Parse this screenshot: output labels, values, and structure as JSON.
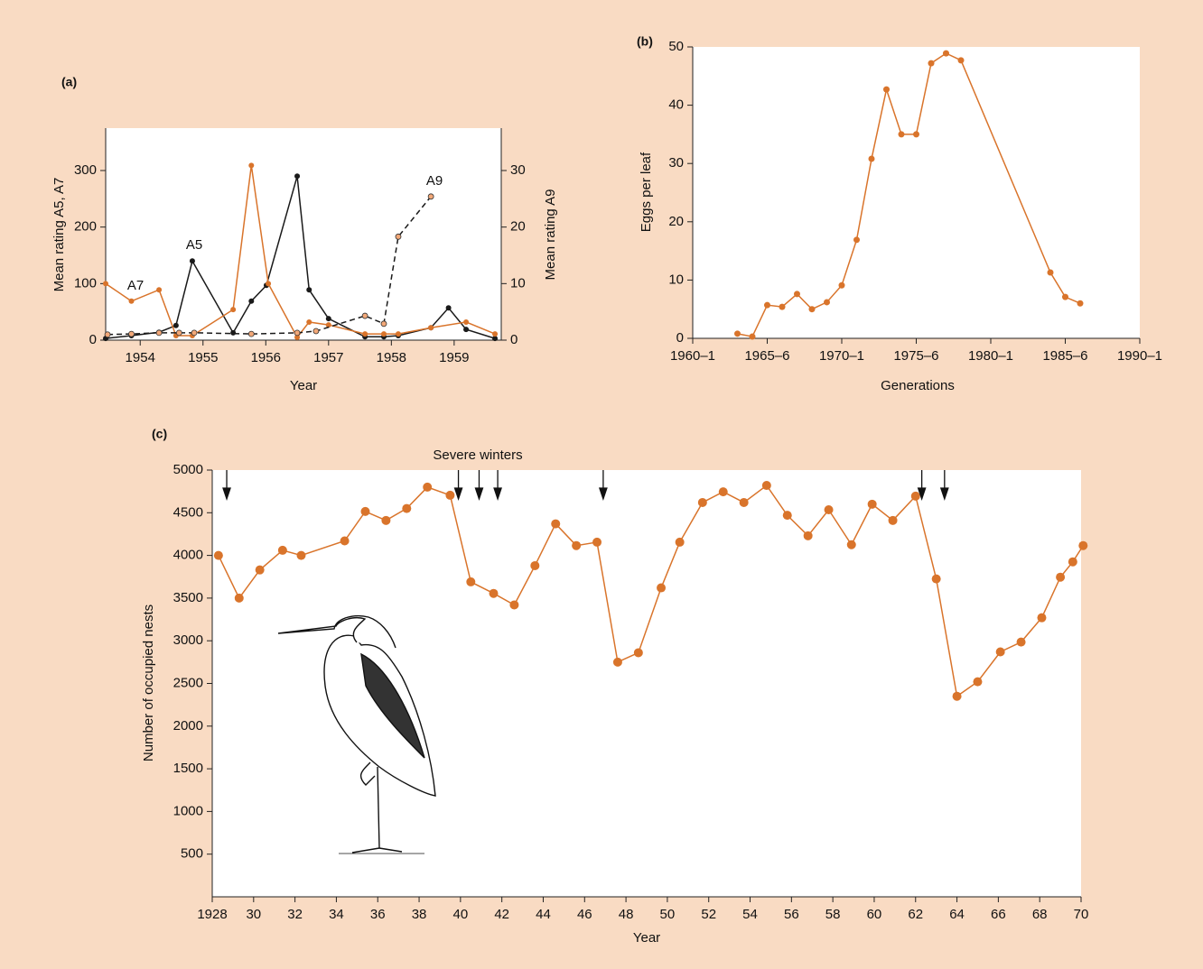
{
  "chart_data": [
    {
      "type": "line",
      "panel_label": "(a)",
      "xlabel": "Year",
      "ylabel": "Mean rating A5, A7",
      "y2label": "Mean rating A9",
      "xlim": [
        1953.45,
        1959.75
      ],
      "xticks": [
        1954,
        1955,
        1956,
        1957,
        1958,
        1959
      ],
      "ylim": [
        0,
        375
      ],
      "yticks": [
        0,
        100,
        200,
        300
      ],
      "y2lim": [
        0,
        37.5
      ],
      "y2ticks": [
        0,
        10,
        20,
        30
      ],
      "series": [
        {
          "name": "A5",
          "color": "#1a1a1a",
          "style": "solid",
          "x": [
            1953.45,
            1953.86,
            1954.3,
            1954.57,
            1954.83,
            1955.48,
            1955.77,
            1956.01,
            1956.5,
            1956.69,
            1957.0,
            1957.58,
            1957.88,
            1958.11,
            1958.63,
            1958.91,
            1959.19,
            1959.65
          ],
          "values": [
            3,
            8,
            14,
            26,
            140,
            13,
            69,
            97,
            290,
            89,
            38,
            6,
            6,
            8,
            22,
            57,
            19,
            3
          ]
        },
        {
          "name": "A7",
          "color": "#d9742b",
          "style": "solid",
          "x": [
            1953.45,
            1953.86,
            1954.3,
            1954.57,
            1954.83,
            1955.48,
            1955.77,
            1956.04,
            1956.5,
            1956.69,
            1957.0,
            1957.58,
            1957.88,
            1958.11,
            1958.63,
            1959.19,
            1959.65
          ],
          "values": [
            100,
            69,
            89,
            8,
            8,
            54,
            309,
            100,
            5,
            32,
            27,
            11,
            11,
            11,
            22,
            32,
            11
          ]
        },
        {
          "name": "A9",
          "color": "#1a1a1a",
          "marker_color": "#f2a878",
          "style": "dashed",
          "axis": "y2",
          "x": [
            1953.48,
            1953.86,
            1954.3,
            1954.62,
            1954.86,
            1955.77,
            1956.5,
            1956.8,
            1957.58,
            1957.88,
            1958.11,
            1958.63
          ],
          "values": [
            1.0,
            1.1,
            1.3,
            1.3,
            1.3,
            1.1,
            1.3,
            1.6,
            4.3,
            2.9,
            18.3,
            25.4
          ]
        }
      ]
    },
    {
      "type": "line",
      "panel_label": "(b)",
      "xlabel": "Generations",
      "ylabel": "Eggs per leaf",
      "xlim": [
        1960,
        1990
      ],
      "xticks": [
        {
          "value": 1960,
          "label": "1960–1"
        },
        {
          "value": 1965,
          "label": "1965–6"
        },
        {
          "value": 1970,
          "label": "1970–1"
        },
        {
          "value": 1975,
          "label": "1975–6"
        },
        {
          "value": 1980,
          "label": "1980–1"
        },
        {
          "value": 1985,
          "label": "1985–6"
        },
        {
          "value": 1990,
          "label": "1990–1"
        }
      ],
      "ylim": [
        0,
        50
      ],
      "yticks": [
        0,
        10,
        20,
        30,
        40,
        50
      ],
      "series": [
        {
          "color": "#d9742b",
          "style": "solid",
          "x": [
            1963,
            1964,
            1965,
            1966,
            1967,
            1968,
            1969,
            1970,
            1971,
            1972,
            1973,
            1974,
            1975,
            1976,
            1977,
            1978,
            1984,
            1985,
            1986
          ],
          "values": [
            0.8,
            0.3,
            5.7,
            5.4,
            7.6,
            5.0,
            6.2,
            9.1,
            16.9,
            30.8,
            42.7,
            35,
            35,
            47.2,
            48.9,
            47.7,
            11.3,
            7.1,
            6.0
          ]
        }
      ]
    },
    {
      "type": "line",
      "panel_label": "(c)",
      "xlabel": "Year",
      "ylabel": "Number of occupied nests",
      "annotation": "Severe winters",
      "arrows_x": [
        1928.7,
        1939.9,
        1940.9,
        1941.8,
        1946.9,
        1962.3,
        1963.4
      ],
      "xlim": [
        1928,
        1970
      ],
      "xticks": [
        1928,
        {
          "value": 1930,
          "label": "30"
        },
        {
          "value": 1932,
          "label": "32"
        },
        {
          "value": 1934,
          "label": "34"
        },
        {
          "value": 1936,
          "label": "36"
        },
        {
          "value": 1938,
          "label": "38"
        },
        {
          "value": 1940,
          "label": "40"
        },
        {
          "value": 1942,
          "label": "42"
        },
        {
          "value": 1944,
          "label": "44"
        },
        {
          "value": 1946,
          "label": "46"
        },
        {
          "value": 1948,
          "label": "48"
        },
        {
          "value": 1950,
          "label": "50"
        },
        {
          "value": 1952,
          "label": "52"
        },
        {
          "value": 1954,
          "label": "54"
        },
        {
          "value": 1956,
          "label": "56"
        },
        {
          "value": 1958,
          "label": "58"
        },
        {
          "value": 1960,
          "label": "60"
        },
        {
          "value": 1962,
          "label": "62"
        },
        {
          "value": 1964,
          "label": "64"
        },
        {
          "value": 1966,
          "label": "66"
        },
        {
          "value": 1968,
          "label": "68"
        },
        {
          "value": 1970,
          "label": "70"
        }
      ],
      "ylim": [
        0,
        5000
      ],
      "yticks": [
        500,
        1000,
        1500,
        2000,
        2500,
        3000,
        3500,
        4000,
        4500,
        5000
      ],
      "series": [
        {
          "color": "#d9742b",
          "style": "solid",
          "x": [
            1928.3,
            1929.3,
            1930.3,
            1931.4,
            1932.3,
            1934.4,
            1935.4,
            1936.4,
            1937.4,
            1938.4,
            1939.5,
            1940.5,
            1941.6,
            1942.6,
            1943.6,
            1944.6,
            1945.6,
            1946.6,
            1947.6,
            1948.6,
            1949.7,
            1950.6,
            1951.7,
            1952.7,
            1953.7,
            1954.8,
            1955.8,
            1956.8,
            1957.8,
            1958.9,
            1959.9,
            1960.9,
            1962.0,
            1963.0,
            1964.0,
            1965.0,
            1966.1,
            1967.1,
            1968.1,
            1969.0,
            1969.6,
            1970.1
          ],
          "values": [
            4000,
            3500,
            3830,
            4060,
            4000,
            4170,
            4515,
            4410,
            4550,
            4800,
            4705,
            3690,
            3555,
            3420,
            3880,
            4370,
            4115,
            4155,
            2750,
            2860,
            3620,
            4155,
            4620,
            4745,
            4620,
            4820,
            4470,
            4230,
            4535,
            4125,
            4600,
            4410,
            4695,
            3725,
            2350,
            2520,
            2870,
            2985,
            3270,
            3745,
            3925,
            4115
          ]
        }
      ]
    }
  ]
}
